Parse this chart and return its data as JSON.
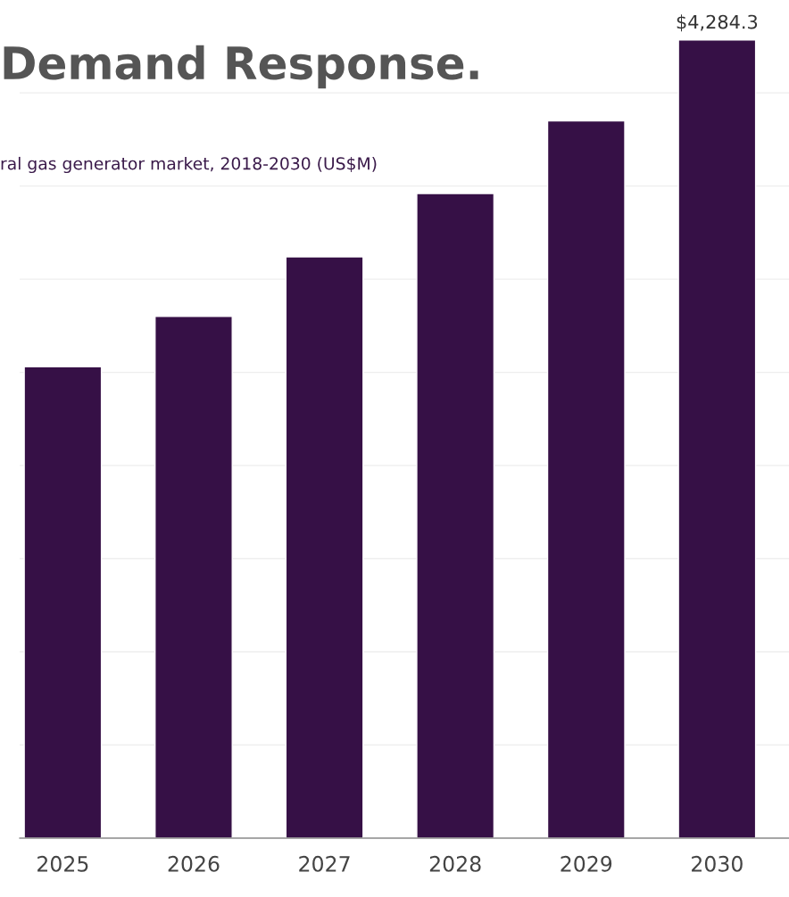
{
  "chart_data": {
    "type": "bar",
    "title": "Demand Response.",
    "subtitle": "ral gas generator market, 2018-2030 (US$M)",
    "categories": [
      "2025",
      "2026",
      "2027",
      "2028",
      "2029",
      "2030"
    ],
    "values": [
      2530,
      2800,
      3120,
      3460,
      3850,
      4284.3
    ],
    "value_labels": [
      null,
      null,
      null,
      null,
      null,
      "$4,284.3"
    ],
    "color": "#361046",
    "yticks": [
      {
        "value": 0,
        "label": null
      },
      {
        "value": 500,
        "label": null
      },
      {
        "value": 1000,
        "label": null
      },
      {
        "value": 1500,
        "label": null
      },
      {
        "value": 2000,
        "label": null
      },
      {
        "value": 2500,
        "label": null
      },
      {
        "value": 3000,
        "label": null
      },
      {
        "value": 3500,
        "label": null
      },
      {
        "value": 4000,
        "label": null
      }
    ],
    "grid": "y"
  }
}
